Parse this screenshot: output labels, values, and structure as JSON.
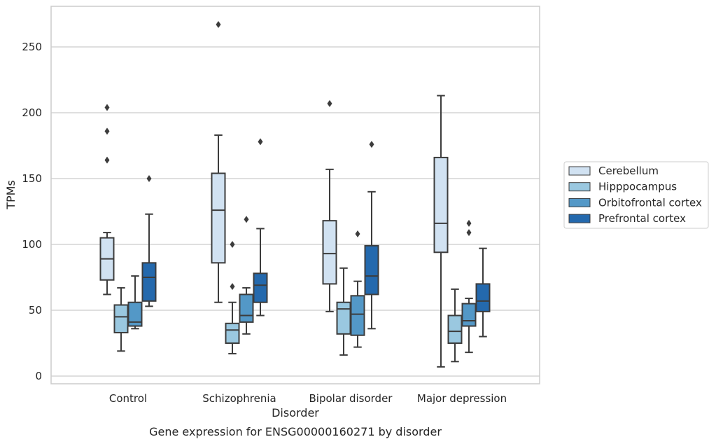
{
  "caption": "Gene expression for ENSG00000160271 by disorder",
  "chart_data": {
    "type": "box",
    "xlabel": "Disorder",
    "ylabel": "TPMs",
    "ylim": [
      -5,
      280
    ],
    "yticks": [
      0,
      50,
      100,
      150,
      200,
      250
    ],
    "grid": "horizontal",
    "legend_position": "right",
    "categories": [
      "Control",
      "Schizophrenia",
      "Bipolar disorder",
      "Major depression"
    ],
    "series": [
      {
        "name": "Cerebellum",
        "color": "#d1e2f2",
        "boxes": [
          {
            "whislo": 62,
            "q1": 73,
            "med": 89,
            "q3": 105,
            "whishi": 109,
            "fliers": [
              164,
              186,
              204
            ]
          },
          {
            "whislo": 56,
            "q1": 86,
            "med": 126,
            "q3": 154,
            "whishi": 183,
            "fliers": [
              267
            ]
          },
          {
            "whislo": 49,
            "q1": 70,
            "med": 93,
            "q3": 118,
            "whishi": 157,
            "fliers": [
              207
            ]
          },
          {
            "whislo": 7,
            "q1": 94,
            "med": 116,
            "q3": 166,
            "whishi": 213,
            "fliers": []
          }
        ]
      },
      {
        "name": "Hipppocampus",
        "color": "#9ac8e0",
        "boxes": [
          {
            "whislo": 19,
            "q1": 33,
            "med": 45,
            "q3": 54,
            "whishi": 67,
            "fliers": []
          },
          {
            "whislo": 17,
            "q1": 25,
            "med": 35,
            "q3": 40,
            "whishi": 56,
            "fliers": [
              68,
              100
            ]
          },
          {
            "whislo": 16,
            "q1": 32,
            "med": 51,
            "q3": 56,
            "whishi": 82,
            "fliers": []
          },
          {
            "whislo": 11,
            "q1": 25,
            "med": 34,
            "q3": 46,
            "whishi": 66,
            "fliers": []
          }
        ]
      },
      {
        "name": "Orbitofrontal cortex",
        "color": "#5398c7",
        "boxes": [
          {
            "whislo": 36,
            "q1": 38,
            "med": 41,
            "q3": 56,
            "whishi": 76,
            "fliers": []
          },
          {
            "whislo": 32,
            "q1": 41,
            "med": 46,
            "q3": 62,
            "whishi": 67,
            "fliers": [
              119
            ]
          },
          {
            "whislo": 22,
            "q1": 31,
            "med": 47,
            "q3": 61,
            "whishi": 72,
            "fliers": [
              108
            ]
          },
          {
            "whislo": 18,
            "q1": 38,
            "med": 42,
            "q3": 55,
            "whishi": 59,
            "fliers": [
              109,
              116
            ]
          }
        ]
      },
      {
        "name": "Prefrontal cortex",
        "color": "#2469ad",
        "boxes": [
          {
            "whislo": 53,
            "q1": 57,
            "med": 75,
            "q3": 86,
            "whishi": 123,
            "fliers": [
              150
            ]
          },
          {
            "whislo": 46,
            "q1": 56,
            "med": 69,
            "q3": 78,
            "whishi": 112,
            "fliers": [
              178
            ]
          },
          {
            "whislo": 36,
            "q1": 62,
            "med": 76,
            "q3": 99,
            "whishi": 140,
            "fliers": [
              176
            ]
          },
          {
            "whislo": 30,
            "q1": 49,
            "med": 57,
            "q3": 70,
            "whishi": 97,
            "fliers": []
          }
        ]
      }
    ]
  }
}
